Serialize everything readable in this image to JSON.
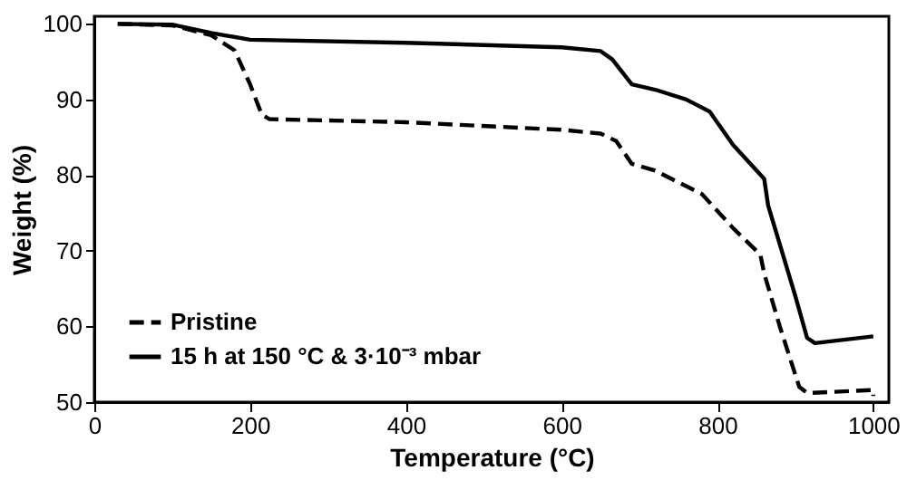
{
  "chart_data": {
    "type": "line",
    "xlabel": "Temperature (°C)",
    "ylabel": "Weight (%)",
    "xlim": [
      0,
      1020
    ],
    "ylim": [
      50,
      101
    ],
    "xticks": [
      0,
      200,
      400,
      600,
      800,
      1000
    ],
    "yticks": [
      50,
      60,
      70,
      80,
      90,
      100
    ],
    "grid": false,
    "legend": "bottom left",
    "marker": "none",
    "series": [
      {
        "name": "Pristine",
        "color": "#000000",
        "line_style": "dashed",
        "x": [
          30,
          100,
          150,
          180,
          200,
          215,
          225,
          400,
          600,
          650,
          670,
          690,
          720,
          780,
          820,
          855,
          860,
          880,
          905,
          915,
          1000,
          1000
        ],
        "values": [
          100,
          99.8,
          98.5,
          96.5,
          92,
          88,
          87.4,
          87,
          86,
          85.5,
          84.5,
          81.5,
          80.6,
          77.5,
          73,
          69.5,
          67,
          60,
          52,
          51.2,
          51.6,
          50.8
        ]
      },
      {
        "name": "15 h at 150 °C & 3·10⁻³ mbar",
        "color": "#000000",
        "line_style": "solid",
        "x": [
          30,
          100,
          150,
          200,
          400,
          600,
          650,
          665,
          690,
          720,
          760,
          790,
          820,
          860,
          865,
          900,
          915,
          925,
          1000
        ],
        "values": [
          100,
          99.9,
          98.8,
          97.9,
          97.5,
          96.9,
          96.4,
          95.3,
          92,
          91.3,
          90,
          88.4,
          84,
          79.5,
          76,
          64,
          58.5,
          57.8,
          58.7
        ]
      }
    ]
  }
}
